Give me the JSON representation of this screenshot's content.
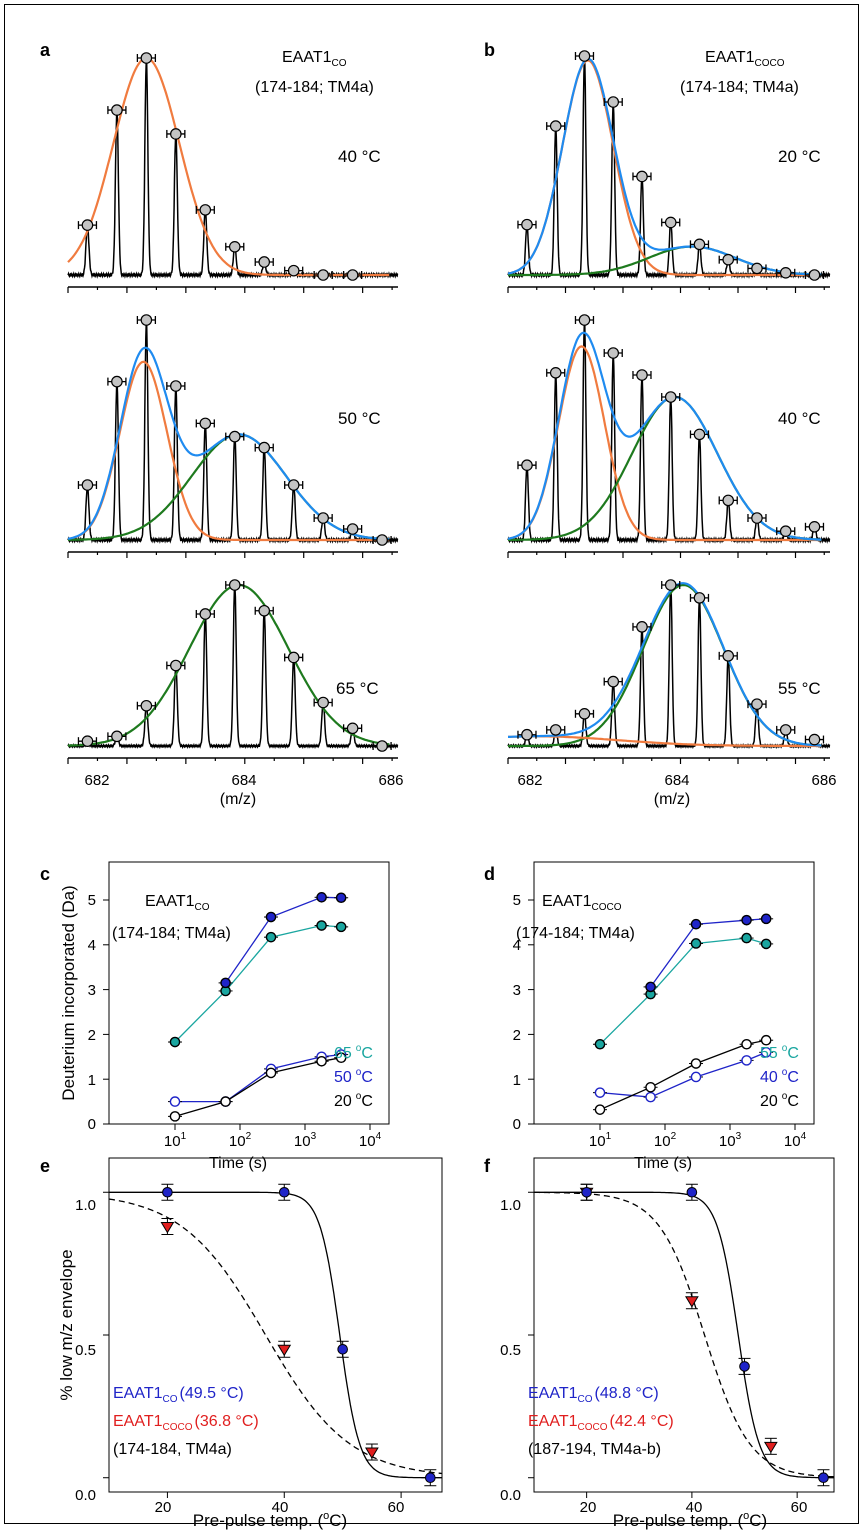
{
  "colors": {
    "orange": "#f07b3f",
    "blue": "#1f8bf0",
    "green": "#1e7a1e",
    "teal": "#1aa6a0",
    "navy": "#1f24c8",
    "red": "#e01e1e",
    "marker_gray": "#c4c4c4",
    "black": "#000000"
  },
  "panel_labels": {
    "a": "a",
    "b": "b",
    "c": "c",
    "d": "d",
    "e": "e",
    "f": "f"
  },
  "spectra": {
    "panel_a": {
      "protein": "EAAT1",
      "protein_sub": "CO",
      "peptide": "(174-184; TM4a)",
      "temps": [
        "40 °C",
        "50 °C",
        "65 °C"
      ]
    },
    "panel_b": {
      "protein": "EAAT1",
      "protein_sub": "COCO",
      "peptide": "(174-184; TM4a)",
      "temps": [
        "20 °C",
        "40 °C",
        "55 °C"
      ]
    },
    "xaxis": {
      "label": "(m/z)",
      "ticks": [
        "682",
        "684",
        "686"
      ],
      "range": [
        681,
        686.6
      ]
    }
  },
  "kinetics": {
    "ylabel": "Deuterium incorporated (Da)",
    "xlabel": "Time (s)",
    "yticks": [
      "0",
      "1",
      "2",
      "3",
      "4",
      "5"
    ],
    "xticks": [
      "10",
      "10",
      "10",
      "10"
    ],
    "xtick_exps": [
      "1",
      "2",
      "3",
      "4"
    ],
    "panel_c": {
      "protein": "EAAT1",
      "protein_sub": "CO",
      "peptide": "(174-184; TM4a)",
      "legend_num": [
        "65",
        "50",
        "20"
      ],
      "legend_unit": "C"
    },
    "panel_d": {
      "protein": "EAAT1",
      "protein_sub": "COCO",
      "peptide": "(174-184; TM4a)",
      "legend_num": [
        "55",
        "40",
        "20"
      ],
      "legend_unit": "C"
    }
  },
  "melting": {
    "ylabel": "% low m/z envelope",
    "xlabel": "Pre-pulse temp. (",
    "xlabel_unit": "C)",
    "yticks": [
      "0.0",
      "0.5",
      "1.0"
    ],
    "xticks": [
      "20",
      "40",
      "60"
    ],
    "panel_e": {
      "leg1": "EAAT1",
      "leg1_sub": "CO",
      "leg1_val": "(49.5 °C)",
      "leg2": "EAAT1",
      "leg2_sub": "COCO",
      "leg2_val": "(36.8 °C)",
      "peptide": "(174-184, TM4a)"
    },
    "panel_f": {
      "leg1": "EAAT1",
      "leg1_sub": "CO",
      "leg1_val": "(48.8 °C)",
      "leg2": "EAAT1",
      "leg2_sub": "COCO",
      "leg2_val": "(42.4 °C)",
      "peptide": "(187-194, TM4a-b)"
    }
  },
  "chart_data": [
    {
      "type": "line",
      "panel": "a-40C",
      "x": [
        681.33,
        681.83,
        682.33,
        682.83,
        683.33,
        683.83,
        684.33,
        684.83,
        685.33,
        685.83
      ],
      "y": [
        0.23,
        0.76,
        1.0,
        0.65,
        0.3,
        0.13,
        0.06,
        0.02,
        0.0,
        0.0
      ],
      "series": [
        {
          "mu": 682.33,
          "sigma": 0.56,
          "amp": 1.0
        }
      ]
    },
    {
      "type": "line",
      "panel": "a-50C",
      "x": [
        681.33,
        681.83,
        682.33,
        682.83,
        683.33,
        683.83,
        684.33,
        684.83,
        685.33,
        685.83,
        686.33
      ],
      "y": [
        0.25,
        0.72,
        1.0,
        0.7,
        0.53,
        0.47,
        0.42,
        0.25,
        0.1,
        0.05,
        0.0
      ],
      "series": [
        {
          "mu": 682.28,
          "sigma": 0.4,
          "amp": 0.81
        },
        {
          "mu": 683.9,
          "sigma": 0.8,
          "amp": 0.48
        }
      ]
    },
    {
      "type": "line",
      "panel": "a-65C",
      "x": [
        681.33,
        681.83,
        682.33,
        682.83,
        683.33,
        683.83,
        684.33,
        684.83,
        685.33,
        685.83,
        686.33
      ],
      "y": [
        0.03,
        0.06,
        0.25,
        0.5,
        0.82,
        1.0,
        0.84,
        0.55,
        0.27,
        0.11,
        0.0
      ],
      "series": [
        {
          "mu": 683.9,
          "sigma": 0.84,
          "amp": 1.0
        }
      ]
    },
    {
      "type": "line",
      "panel": "b-20C",
      "x": [
        681.33,
        681.83,
        682.33,
        682.83,
        683.33,
        683.83,
        684.33,
        684.83,
        685.33,
        685.83,
        686.33
      ],
      "y": [
        0.23,
        0.68,
        1.0,
        0.79,
        0.45,
        0.24,
        0.14,
        0.07,
        0.03,
        0.01,
        0.0
      ],
      "series": [
        {
          "mu": 682.39,
          "sigma": 0.44,
          "amp": 0.98
        },
        {
          "mu": 684.2,
          "sigma": 0.75,
          "amp": 0.13
        }
      ]
    },
    {
      "type": "line",
      "panel": "b-40C",
      "x": [
        681.33,
        681.83,
        682.33,
        682.83,
        683.33,
        683.83,
        684.33,
        684.83,
        685.33,
        685.83,
        686.33
      ],
      "y": [
        0.34,
        0.76,
        1.0,
        0.85,
        0.75,
        0.65,
        0.48,
        0.18,
        0.1,
        0.04,
        0.06
      ],
      "series": [
        {
          "mu": 682.28,
          "sigma": 0.4,
          "amp": 0.88
        },
        {
          "mu": 683.9,
          "sigma": 0.74,
          "amp": 0.65
        }
      ]
    },
    {
      "type": "line",
      "panel": "b-55C",
      "x": [
        681.33,
        681.83,
        682.33,
        682.83,
        683.33,
        683.83,
        684.33,
        684.83,
        685.33,
        685.83,
        686.33
      ],
      "y": [
        0.07,
        0.1,
        0.2,
        0.4,
        0.74,
        1.0,
        0.92,
        0.56,
        0.26,
        0.1,
        0.04
      ],
      "series": [
        {
          "mu": 684.05,
          "sigma": 0.7,
          "amp": 1.0
        },
        {
          "mu": 681.5,
          "sigma": 1.4,
          "amp": 0.06
        }
      ]
    },
    {
      "type": "line",
      "panel": "c",
      "xlabel": "Time (s)",
      "ylabel": "Deuterium incorporated (Da)",
      "x": [
        10,
        60,
        300,
        1800,
        3600
      ],
      "ylim": [
        0,
        5.5
      ],
      "series": [
        {
          "name": "65 °C",
          "values": [
            1.83,
            2.97,
            4.17,
            4.43,
            4.4
          ],
          "filled": true
        },
        {
          "name": "50 °C",
          "values": [
            null,
            3.15,
            4.62,
            5.06,
            5.05
          ],
          "filled": true
        },
        {
          "name": "50 °C",
          "values": [
            0.5,
            0.5,
            1.23,
            1.5,
            1.55
          ],
          "filled": false
        },
        {
          "name": "20 °C",
          "values": [
            0.17,
            0.5,
            1.14,
            1.4,
            1.48
          ],
          "filled": false
        }
      ]
    },
    {
      "type": "line",
      "panel": "d",
      "xlabel": "Time (s)",
      "ylabel": "Deuterium incorporated (Da)",
      "x": [
        10,
        60,
        300,
        1800,
        3600
      ],
      "ylim": [
        0,
        5.5
      ],
      "series": [
        {
          "name": "55 °C",
          "values": [
            1.78,
            2.9,
            4.03,
            4.15,
            4.02
          ],
          "filled": true
        },
        {
          "name": "40 °C",
          "values": [
            null,
            3.06,
            4.46,
            4.55,
            4.58
          ],
          "filled": true
        },
        {
          "name": "40 °C",
          "values": [
            0.7,
            0.6,
            1.05,
            1.42,
            1.6
          ],
          "filled": false
        },
        {
          "name": "20 °C",
          "values": [
            0.32,
            0.82,
            1.35,
            1.78,
            1.87
          ],
          "filled": false
        }
      ]
    },
    {
      "type": "scatter",
      "panel": "e",
      "xlabel": "Pre-pulse temp. (°C)",
      "ylabel": "% low m/z envelope",
      "xlim": [
        10,
        67
      ],
      "ylim": [
        -0.05,
        1.12
      ],
      "series": [
        {
          "name": "EAAT1CO (49.5 °C)",
          "x": [
            20,
            40,
            50,
            65
          ],
          "values": [
            1.0,
            1.0,
            0.45,
            0.0
          ],
          "tm": 49.5,
          "slope": 1.7
        },
        {
          "name": "EAAT1COCO (36.8 °C)",
          "x": [
            20,
            40,
            55
          ],
          "values": [
            0.88,
            0.45,
            0.09
          ],
          "tm": 36.8,
          "slope": 7.2
        }
      ]
    },
    {
      "type": "scatter",
      "panel": "f",
      "xlabel": "Pre-pulse temp. (°C)",
      "ylabel": "% low m/z envelope",
      "xlim": [
        10,
        67
      ],
      "ylim": [
        -0.05,
        1.12
      ],
      "series": [
        {
          "name": "EAAT1CO (48.8 °C)",
          "x": [
            20,
            40,
            50,
            65
          ],
          "values": [
            1.0,
            1.0,
            0.39,
            0.0
          ],
          "tm": 48.8,
          "slope": 2.0
        },
        {
          "name": "EAAT1COCO (42.4 °C)",
          "x": [
            20,
            40,
            55
          ],
          "values": [
            1.0,
            0.62,
            0.11
          ],
          "tm": 42.4,
          "slope": 4.3
        }
      ]
    }
  ]
}
